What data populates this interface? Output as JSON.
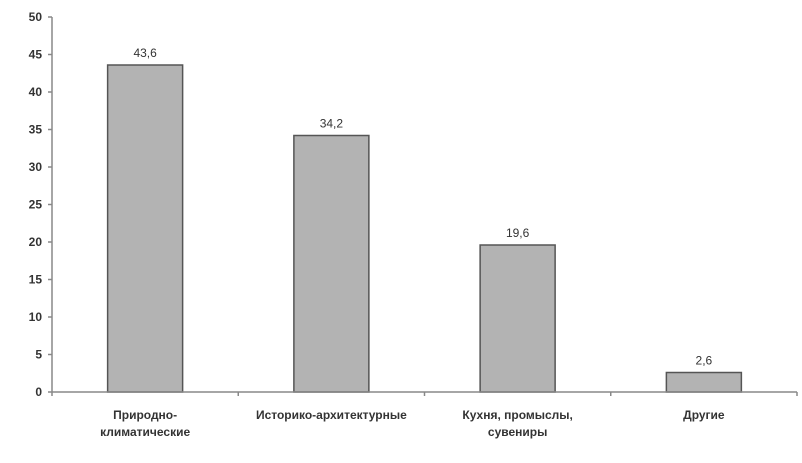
{
  "chart_data": {
    "type": "bar",
    "title": "",
    "xlabel": "",
    "ylabel": "",
    "categories": [
      [
        "Природно-",
        "климатические"
      ],
      [
        "Историко-архитектурные"
      ],
      [
        "Кухня, промыслы,",
        "сувениры"
      ],
      [
        "Другие"
      ]
    ],
    "values": [
      43.6,
      34.2,
      19.6,
      2.6
    ],
    "data_labels": [
      "43,6",
      "34,2",
      "19,6",
      "2,6"
    ],
    "ylim": [
      0,
      50
    ],
    "yticks": [
      0,
      5,
      10,
      15,
      20,
      25,
      30,
      35,
      40,
      45,
      50
    ],
    "grid": false,
    "legend": "none",
    "colors": {
      "bar_fill": "#b3b3b3",
      "bar_stroke": "#555555",
      "axis": "#888888",
      "text": "#333333"
    }
  }
}
